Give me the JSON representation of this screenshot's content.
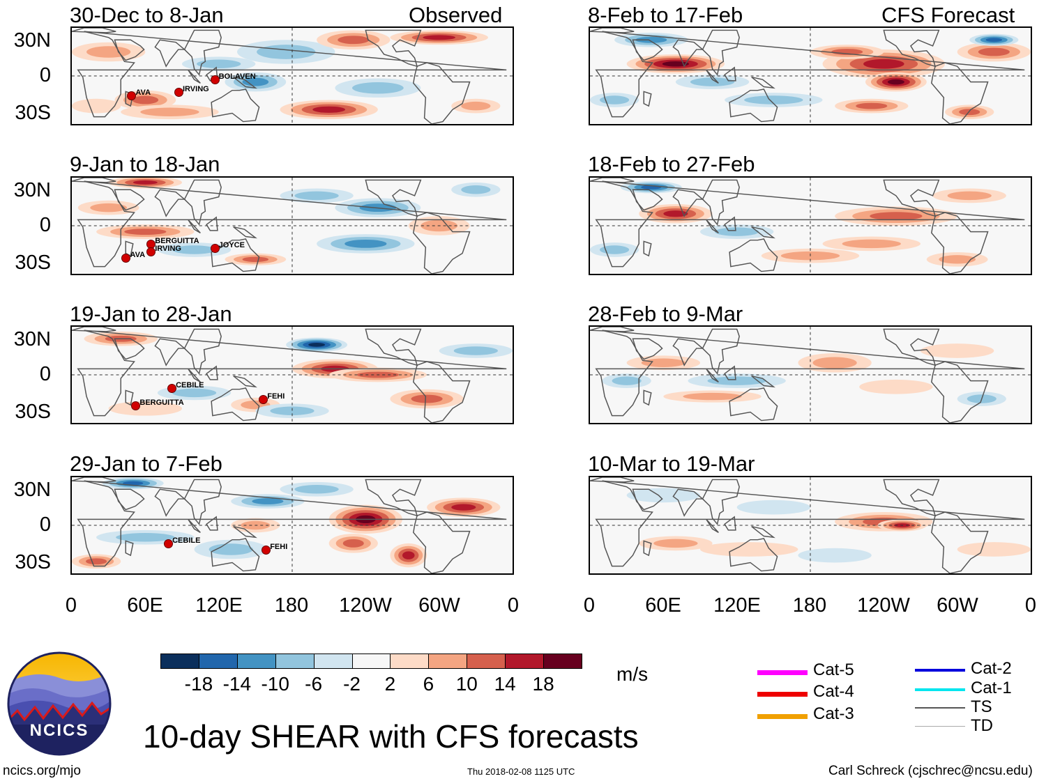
{
  "observed_label": "Observed",
  "forecast_label": "CFS Forecast",
  "lat_labels": [
    "30N",
    "0",
    "30S"
  ],
  "lon_labels": [
    "0",
    "60E",
    "120E",
    "180",
    "120W",
    "60W",
    "0"
  ],
  "panels_left": [
    {
      "title": "30-Dec to 8-Jan",
      "storms": [
        "AVA",
        "IRVING",
        "BOLAVEN"
      ]
    },
    {
      "title": "9-Jan to 18-Jan",
      "storms": [
        "BERGUITTA",
        "IRVING",
        "AVA",
        "JOYCE"
      ]
    },
    {
      "title": "19-Jan to 28-Jan",
      "storms": [
        "CEBILE",
        "BERGUITTA",
        "FEHI"
      ]
    },
    {
      "title": "29-Jan to 7-Feb",
      "storms": [
        "CEBILE",
        "FEHI"
      ]
    }
  ],
  "panels_right": [
    {
      "title": "8-Feb to 17-Feb"
    },
    {
      "title": "18-Feb to 27-Feb"
    },
    {
      "title": "28-Feb to 9-Mar"
    },
    {
      "title": "10-Mar to 19-Mar"
    }
  ],
  "colorbar": {
    "colors": [
      "#0b2f5c",
      "#2166ac",
      "#4393c3",
      "#92c5de",
      "#d1e5f0",
      "#f7f7f7",
      "#fddbc7",
      "#f4a582",
      "#d6604d",
      "#b2182b",
      "#67001f"
    ],
    "labels": [
      "-18",
      "-14",
      "-10",
      "-6",
      "-2",
      "2",
      "6",
      "10",
      "14",
      "18"
    ],
    "units": "m/s"
  },
  "legend": [
    {
      "label": "Cat-5",
      "color": "#ff00ff"
    },
    {
      "label": "Cat-4",
      "color": "#ee0000"
    },
    {
      "label": "Cat-3",
      "color": "#f0a000"
    },
    {
      "label": "Cat-2",
      "color": "#0000dd"
    },
    {
      "label": "Cat-1",
      "color": "#00e5ee"
    },
    {
      "label": "TS",
      "color": "#555555"
    },
    {
      "label": "TD",
      "color": "#aaaaaa"
    }
  ],
  "logo_text": "NCICS",
  "main_title": "10-day SHEAR with CFS forecasts",
  "footer_left": "ncics.org/mjo",
  "footer_center": "Thu 2018-02-08 1125 UTC",
  "footer_right": "Carl Schreck (cjschrec@ncsu.edu)"
}
